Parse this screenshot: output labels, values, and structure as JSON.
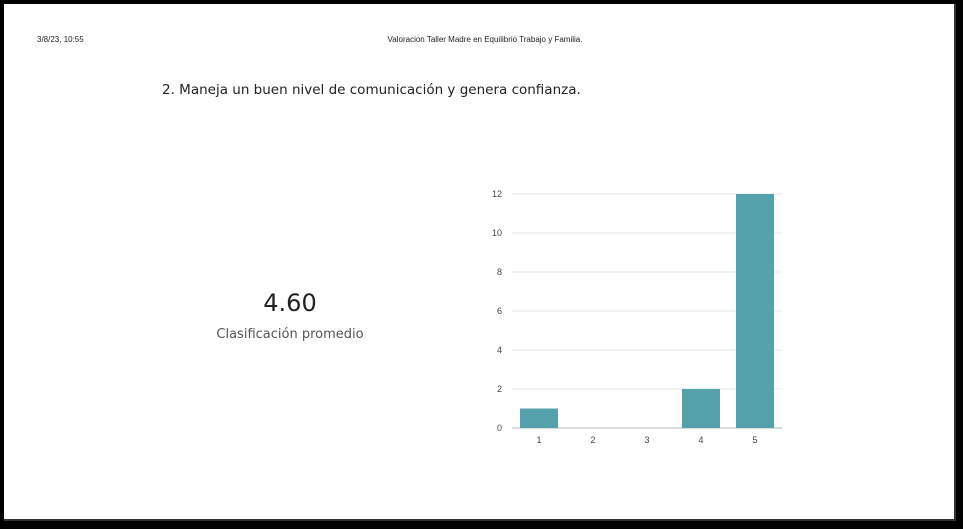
{
  "header": {
    "date": "3/8/23, 10:55",
    "title": "Valoracion Taller Madre en Equilibrio Trabajo y Familia."
  },
  "question": "2.  Maneja un buen nivel de comunicación y genera confianza.",
  "summary": {
    "value": "4.60",
    "label": "Clasificación promedio"
  },
  "colors": {
    "bar": "#55a2ad",
    "grid": "#e6e6e6"
  },
  "chart_data": {
    "type": "bar",
    "categories": [
      "1",
      "2",
      "3",
      "4",
      "5"
    ],
    "values": [
      1,
      0,
      0,
      2,
      12
    ],
    "ylim": [
      0,
      12
    ],
    "yticks": [
      0,
      2,
      4,
      6,
      8,
      10,
      12
    ],
    "grid": true,
    "legend": "none"
  }
}
